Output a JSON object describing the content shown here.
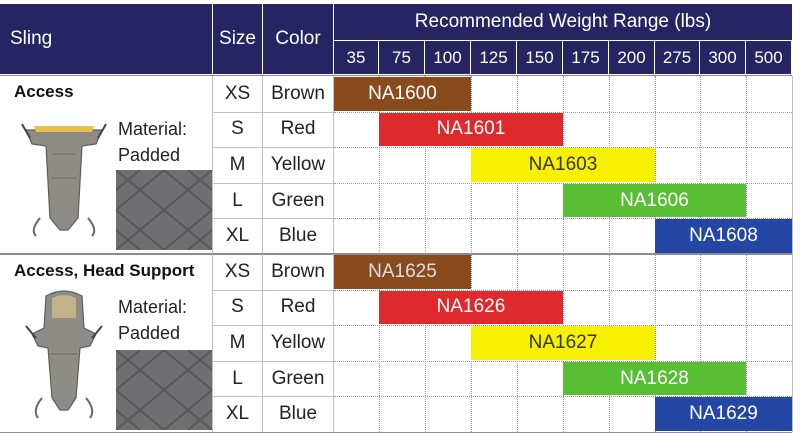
{
  "header": {
    "sling": "Sling",
    "size": "Size",
    "color": "Color",
    "range_title": "Recommended Weight Range (lbs)",
    "weights": [
      "35",
      "75",
      "100",
      "125",
      "150",
      "175",
      "200",
      "275",
      "300",
      "500"
    ]
  },
  "groups": [
    {
      "name": "Access",
      "material_label": "Material:",
      "material_value": "Padded",
      "rows": [
        {
          "size": "XS",
          "color": "Brown",
          "model": "NA1600",
          "start": 0,
          "end": 3,
          "bar_color": "#8a4b1c",
          "text_color": "#ffffff"
        },
        {
          "size": "S",
          "color": "Red",
          "model": "NA1601",
          "start": 1,
          "end": 5,
          "bar_color": "#de2a2c",
          "text_color": "#ffffff"
        },
        {
          "size": "M",
          "color": "Yellow",
          "model": "NA1603",
          "start": 3,
          "end": 7,
          "bar_color": "#f7f000",
          "text_color": "#333333"
        },
        {
          "size": "L",
          "color": "Green",
          "model": "NA1606",
          "start": 5,
          "end": 9,
          "bar_color": "#58bf34",
          "text_color": "#ffffff"
        },
        {
          "size": "XL",
          "color": "Blue",
          "model": "NA1608",
          "start": 7,
          "end": 10,
          "bar_color": "#2447a6",
          "text_color": "#ffffff"
        }
      ]
    },
    {
      "name": "Access, Head Support",
      "material_label": "Material:",
      "material_value": "Padded",
      "rows": [
        {
          "size": "XS",
          "color": "Brown",
          "model": "NA1625",
          "start": 0,
          "end": 3,
          "bar_color": "#8a4b1c",
          "text_color": "#d9dde8"
        },
        {
          "size": "S",
          "color": "Red",
          "model": "NA1626",
          "start": 1,
          "end": 5,
          "bar_color": "#de2a2c",
          "text_color": "#ffffff"
        },
        {
          "size": "M",
          "color": "Yellow",
          "model": "NA1627",
          "start": 3,
          "end": 7,
          "bar_color": "#f7f000",
          "text_color": "#333333"
        },
        {
          "size": "L",
          "color": "Green",
          "model": "NA1628",
          "start": 5,
          "end": 9,
          "bar_color": "#58bf34",
          "text_color": "#ffffff"
        },
        {
          "size": "XL",
          "color": "Blue",
          "model": "NA1629",
          "start": 7,
          "end": 10,
          "bar_color": "#2447a6",
          "text_color": "#ffffff"
        }
      ]
    }
  ],
  "colors": {
    "header_bg": "#262463",
    "grid_line": "#bfbfc9",
    "dotted_line": "#9a9aa6"
  }
}
